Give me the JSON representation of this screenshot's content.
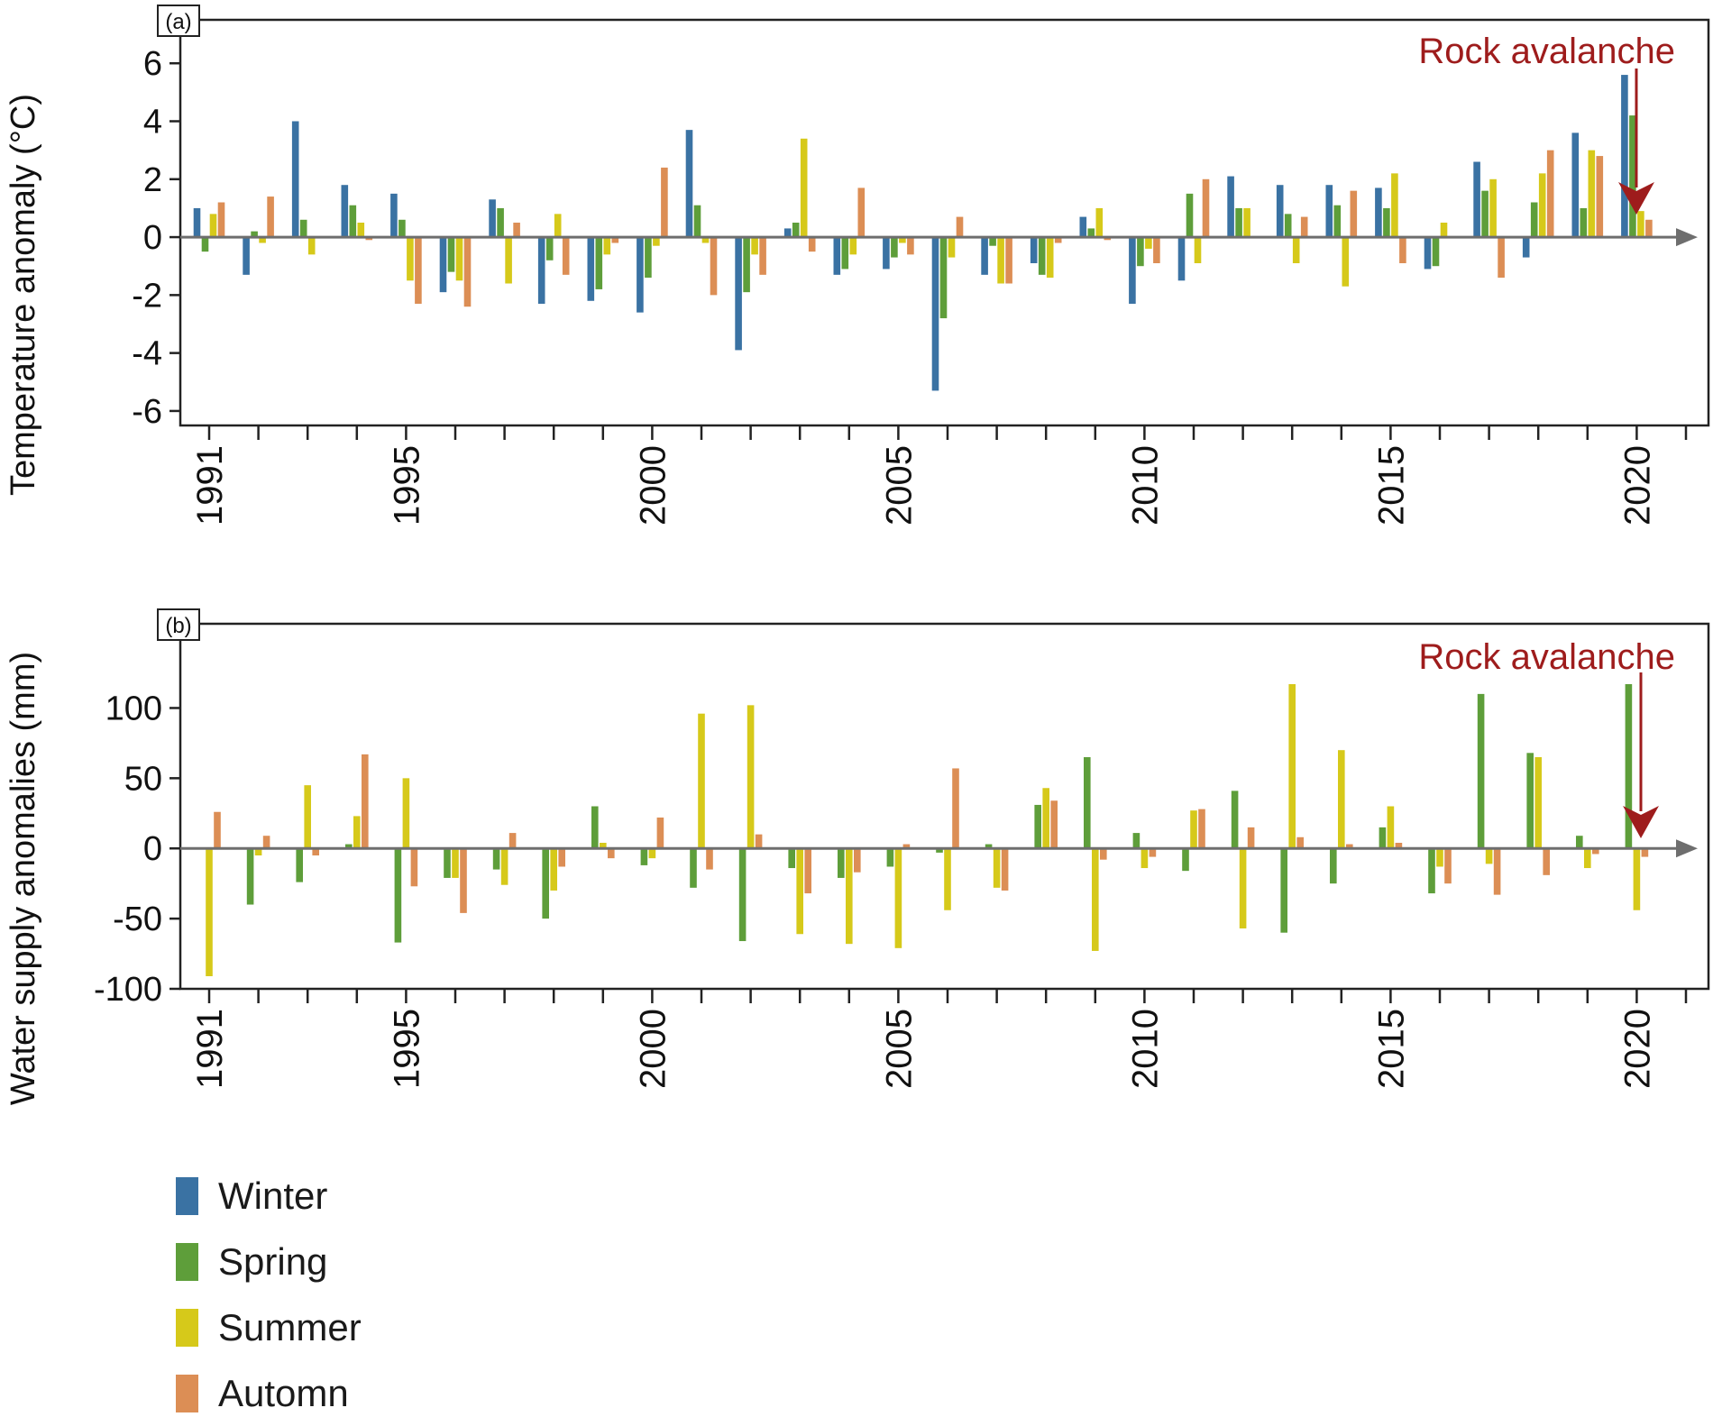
{
  "chart_data": [
    {
      "type": "bar",
      "panel_label": "(a)",
      "ylabel": "Temperature anomaly (°C)",
      "ylim": [
        -6.5,
        7.5
      ],
      "yticks": [
        -6,
        -4,
        -2,
        0,
        2,
        4,
        6
      ],
      "x": [
        1991,
        1992,
        1993,
        1994,
        1995,
        1996,
        1997,
        1998,
        1999,
        2000,
        2001,
        2002,
        2003,
        2004,
        2005,
        2006,
        2007,
        2008,
        2009,
        2010,
        2011,
        2012,
        2013,
        2014,
        2015,
        2016,
        2017,
        2018,
        2019,
        2020
      ],
      "xticks": [
        "1991",
        "1995",
        "2000",
        "2005",
        "2010",
        "2015",
        "2020"
      ],
      "annotation": "Rock avalanche",
      "series": [
        {
          "name": "Winter",
          "values": [
            1.0,
            -1.3,
            4.0,
            1.8,
            1.5,
            -1.9,
            1.3,
            -2.3,
            -2.2,
            -2.6,
            3.7,
            -3.9,
            0.3,
            -1.3,
            -1.1,
            -5.3,
            -1.3,
            -0.9,
            0.7,
            -2.3,
            -1.5,
            2.1,
            1.8,
            1.8,
            1.7,
            -1.1,
            2.6,
            -0.7,
            3.6,
            5.6
          ]
        },
        {
          "name": "Spring",
          "values": [
            -0.5,
            0.2,
            0.6,
            1.1,
            0.6,
            -1.2,
            1.0,
            -0.8,
            -1.8,
            -1.4,
            1.1,
            -1.9,
            0.5,
            -1.1,
            -0.7,
            -2.8,
            -0.3,
            -1.3,
            0.3,
            -1.0,
            1.5,
            1.0,
            0.8,
            1.1,
            1.0,
            -1.0,
            1.6,
            1.2,
            1.0,
            4.2
          ]
        },
        {
          "name": "Summer",
          "values": [
            0.8,
            -0.2,
            -0.6,
            0.5,
            -1.5,
            -1.5,
            -1.6,
            0.8,
            -0.6,
            -0.3,
            -0.2,
            -0.6,
            3.4,
            -0.6,
            -0.2,
            -0.7,
            -1.6,
            -1.4,
            1.0,
            -0.4,
            -0.9,
            1.0,
            -0.9,
            -1.7,
            2.2,
            0.5,
            2.0,
            2.2,
            3.0,
            0.9
          ]
        },
        {
          "name": "Automn",
          "values": [
            1.2,
            1.4,
            0.0,
            -0.1,
            -2.3,
            -2.4,
            0.5,
            -1.3,
            -0.2,
            2.4,
            -2.0,
            -1.3,
            -0.5,
            1.7,
            -0.6,
            0.7,
            -1.6,
            -0.2,
            -0.1,
            -0.9,
            2.0,
            0.0,
            0.7,
            1.6,
            -0.9,
            0.0,
            -1.4,
            3.0,
            2.8,
            0.6
          ]
        }
      ]
    },
    {
      "type": "bar",
      "panel_label": "(b)",
      "ylabel": "Water supply anomalies (mm)",
      "ylim": [
        -100,
        160
      ],
      "yticks": [
        -100,
        -50,
        0,
        50,
        100
      ],
      "x": [
        1991,
        1992,
        1993,
        1994,
        1995,
        1996,
        1997,
        1998,
        1999,
        2000,
        2001,
        2002,
        2003,
        2004,
        2005,
        2006,
        2007,
        2008,
        2009,
        2010,
        2011,
        2012,
        2013,
        2014,
        2015,
        2016,
        2017,
        2018,
        2019,
        2020
      ],
      "xticks": [
        "1991",
        "1995",
        "2000",
        "2005",
        "2010",
        "2015",
        "2020"
      ],
      "annotation": "Rock avalanche",
      "series": [
        {
          "name": "Spring",
          "values": [
            0,
            -40,
            -24,
            3,
            -67,
            -21,
            -15,
            -50,
            30,
            -12,
            -28,
            -66,
            -14,
            -21,
            -13,
            -3,
            3,
            31,
            65,
            11,
            -16,
            41,
            -60,
            -25,
            15,
            -32,
            110,
            68,
            9,
            117
          ]
        },
        {
          "name": "Summer",
          "values": [
            -91,
            -5,
            45,
            23,
            50,
            -21,
            -26,
            -30,
            4,
            -7,
            96,
            102,
            -61,
            -68,
            -71,
            -44,
            -28,
            43,
            -73,
            -14,
            27,
            -57,
            117,
            70,
            30,
            -13,
            -11,
            65,
            -14,
            -44
          ]
        },
        {
          "name": "Automn",
          "values": [
            26,
            9,
            -5,
            67,
            -27,
            -46,
            11,
            -13,
            -7,
            22,
            -15,
            10,
            -32,
            -17,
            3,
            57,
            -30,
            34,
            -8,
            -6,
            28,
            15,
            8,
            3,
            4,
            -25,
            -33,
            -19,
            -4,
            -6
          ]
        }
      ]
    }
  ],
  "legend": [
    {
      "label": "Winter",
      "color": "#3a72a3"
    },
    {
      "label": "Spring",
      "color": "#5e9e3a"
    },
    {
      "label": "Summer",
      "color": "#d6c91a"
    },
    {
      "label": "Automn",
      "color": "#dc8e55"
    }
  ],
  "colors": {
    "Winter": "#3a72a3",
    "Spring": "#5e9e3a",
    "Summer": "#d6c91a",
    "Automn": "#dc8e55",
    "annotation": "#9e1c1c",
    "axis": "#6e6e6e"
  }
}
